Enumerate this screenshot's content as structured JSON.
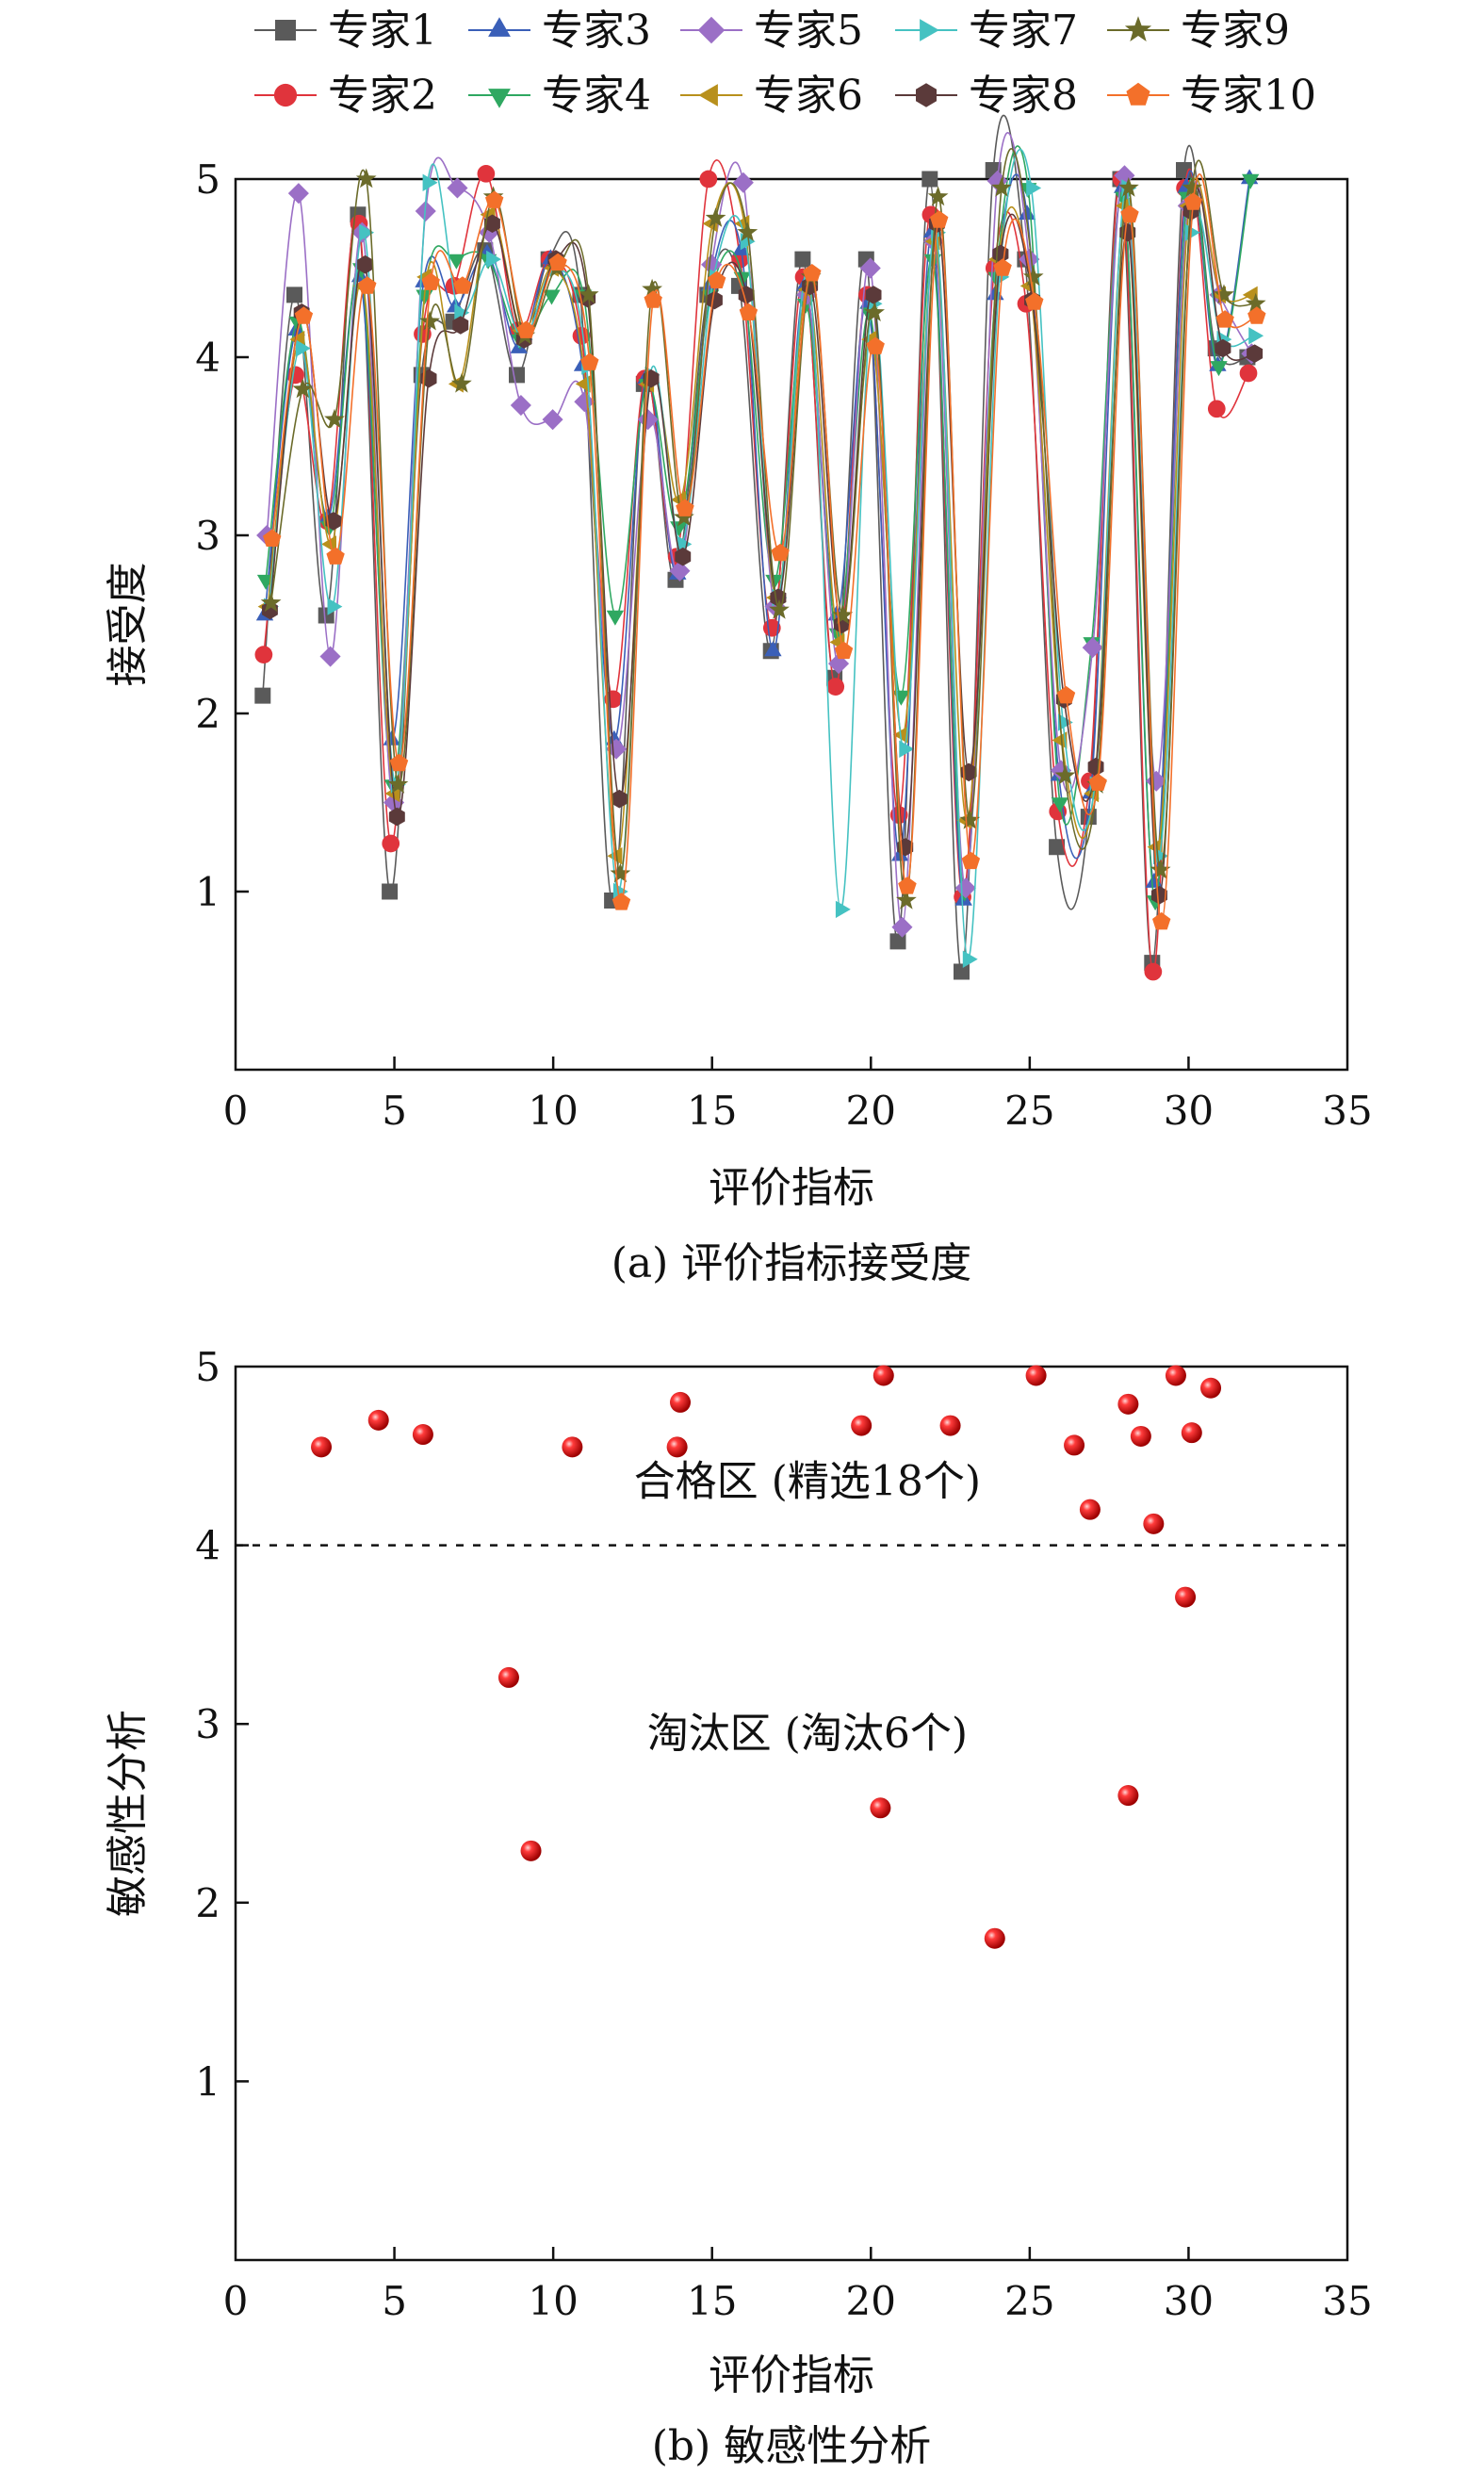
{
  "legend_entries": [
    {
      "name": "专家1",
      "color": "#5a5a5a",
      "marker": "square"
    },
    {
      "name": "专家3",
      "color": "#3a5fb8",
      "marker": "triangle-up"
    },
    {
      "name": "专家5",
      "color": "#9b6fc6",
      "marker": "diamond"
    },
    {
      "name": "专家7",
      "color": "#45c2c2",
      "marker": "triangle-right"
    },
    {
      "name": "专家9",
      "color": "#6b6b2a",
      "marker": "star"
    },
    {
      "name": "专家2",
      "color": "#e0343c",
      "marker": "circle"
    },
    {
      "name": "专家4",
      "color": "#2fa861",
      "marker": "triangle-down"
    },
    {
      "name": "专家6",
      "color": "#b8901c",
      "marker": "triangle-left"
    },
    {
      "name": "专家8",
      "color": "#5b3a3a",
      "marker": "hexagon"
    },
    {
      "name": "专家10",
      "color": "#f3702a",
      "marker": "pentagon"
    }
  ],
  "chart_data": [
    {
      "type": "line",
      "caption": "(a) 评价指标接受度",
      "xlabel": "评价指标",
      "ylabel": "接受度",
      "xlim": [
        0,
        35
      ],
      "ylim": [
        0,
        5
      ],
      "xticks": [
        0,
        5,
        10,
        15,
        20,
        25,
        30,
        35
      ],
      "yticks": [
        1,
        2,
        3,
        4,
        5
      ],
      "grid": false,
      "legend_position": "top",
      "x": [
        1,
        2,
        3,
        4,
        5,
        6,
        7,
        8,
        9,
        10,
        11,
        12,
        13,
        14,
        15,
        16,
        17,
        18,
        19,
        20,
        21,
        22,
        23,
        24,
        25,
        26,
        27,
        28,
        29,
        30,
        31,
        32
      ],
      "series": [
        {
          "name": "专家1",
          "values": [
            2.1,
            4.35,
            2.55,
            4.8,
            1.0,
            3.9,
            4.2,
            4.6,
            3.9,
            4.55,
            4.35,
            0.95,
            3.85,
            2.75,
            4.35,
            4.4,
            2.35,
            4.55,
            2.2,
            4.55,
            0.72,
            5.0,
            0.55,
            5.05,
            4.55,
            1.25,
            1.42,
            5.0,
            0.6,
            5.05,
            4.05,
            4.0
          ]
        },
        {
          "name": "专家2",
          "values": [
            2.33,
            3.9,
            3.08,
            4.75,
            1.27,
            4.13,
            4.4,
            5.03,
            4.15,
            4.55,
            4.12,
            2.08,
            3.88,
            2.88,
            5.0,
            4.55,
            2.48,
            4.45,
            2.15,
            4.35,
            1.43,
            4.8,
            0.97,
            4.5,
            4.3,
            1.45,
            1.62,
            5.0,
            0.55,
            4.95,
            3.71,
            3.91
          ]
        },
        {
          "name": "专家3",
          "values": [
            2.55,
            4.15,
            3.1,
            4.45,
            1.85,
            4.42,
            4.28,
            4.58,
            4.05,
            4.55,
            3.95,
            1.85,
            3.88,
            2.78,
            4.4,
            4.6,
            2.35,
            4.4,
            2.55,
            4.3,
            1.2,
            4.7,
            0.95,
            4.35,
            4.8,
            1.65,
            1.55,
            4.95,
            1.05,
            4.95,
            3.95,
            5.0
          ]
        },
        {
          "name": "专家4",
          "values": [
            2.75,
            4.2,
            3.05,
            4.5,
            1.6,
            4.35,
            4.55,
            4.55,
            4.1,
            4.35,
            4.35,
            2.55,
            3.85,
            3.05,
            4.35,
            4.45,
            2.75,
            4.3,
            2.45,
            4.25,
            2.1,
            4.55,
            1.0,
            4.45,
            4.95,
            1.5,
            2.4,
            4.9,
            0.95,
            4.9,
            3.95,
            5.0
          ]
        },
        {
          "name": "专家5",
          "values": [
            3.0,
            4.92,
            2.32,
            4.7,
            1.5,
            4.82,
            4.95,
            4.7,
            3.73,
            3.65,
            3.75,
            1.8,
            3.65,
            2.8,
            4.52,
            4.98,
            2.6,
            4.35,
            2.28,
            4.5,
            0.8,
            4.65,
            1.02,
            4.99,
            4.55,
            1.68,
            2.37,
            5.02,
            1.62,
            4.85,
            4.35,
            4.02
          ]
        },
        {
          "name": "专家6",
          "values": [
            2.6,
            4.1,
            2.95,
            4.4,
            1.55,
            4.45,
            3.85,
            4.8,
            4.15,
            4.5,
            3.85,
            1.2,
            3.85,
            3.2,
            4.75,
            4.75,
            2.65,
            4.38,
            2.4,
            4.1,
            1.88,
            4.65,
            1.4,
            4.55,
            4.4,
            1.85,
            1.55,
            4.85,
            1.25,
            4.85,
            4.35,
            4.35
          ]
        },
        {
          "name": "专家7",
          "values": [
            2.6,
            4.05,
            2.6,
            4.7,
            1.6,
            4.98,
            4.25,
            4.55,
            4.1,
            4.5,
            3.95,
            1.0,
            3.9,
            2.95,
            4.45,
            4.65,
            2.65,
            4.45,
            0.9,
            4.3,
            1.8,
            4.7,
            0.62,
            4.45,
            4.95,
            1.95,
            1.6,
            4.95,
            1.2,
            4.7,
            4.1,
            4.12
          ]
        },
        {
          "name": "专家8",
          "values": [
            2.58,
            4.25,
            3.08,
            4.52,
            1.42,
            3.88,
            4.18,
            4.75,
            4.1,
            4.55,
            4.33,
            1.52,
            3.88,
            2.88,
            4.32,
            4.35,
            2.65,
            4.4,
            2.5,
            4.35,
            1.25,
            4.75,
            1.67,
            4.58,
            4.32,
            2.08,
            1.7,
            4.7,
            0.98,
            4.82,
            4.05,
            4.02
          ]
        },
        {
          "name": "专家9",
          "values": [
            2.62,
            3.82,
            3.65,
            5.0,
            1.6,
            4.2,
            3.85,
            4.9,
            4.12,
            4.5,
            4.35,
            1.1,
            4.38,
            3.1,
            4.78,
            4.7,
            2.58,
            4.45,
            2.55,
            4.25,
            0.95,
            4.9,
            1.4,
            4.95,
            4.45,
            1.65,
            1.6,
            4.95,
            1.12,
            4.95,
            4.35,
            4.3
          ]
        },
        {
          "name": "专家10",
          "values": [
            2.98,
            4.23,
            2.88,
            4.4,
            1.72,
            4.42,
            4.4,
            4.88,
            4.15,
            4.53,
            3.97,
            0.94,
            4.32,
            3.15,
            4.43,
            4.25,
            2.9,
            4.47,
            2.35,
            4.06,
            1.03,
            4.77,
            1.17,
            4.5,
            4.31,
            2.1,
            1.61,
            4.8,
            0.83,
            4.87,
            4.21,
            4.23
          ]
        }
      ]
    },
    {
      "type": "scatter",
      "caption": "(b) 敏感性分析",
      "xlabel": "评价指标",
      "ylabel": "敏感性分析",
      "xlim": [
        0,
        35
      ],
      "ylim": [
        0,
        5
      ],
      "xticks": [
        0,
        5,
        10,
        15,
        20,
        25,
        30,
        35
      ],
      "yticks": [
        1,
        2,
        3,
        4,
        5
      ],
      "threshold": 4,
      "marker_color": "#e01b24",
      "annotations": [
        {
          "text": "合格区 (精选18个)",
          "x": 18,
          "y": 4.28
        },
        {
          "text": "淘汰区 (淘汰6个)",
          "x": 18,
          "y": 2.87
        }
      ],
      "points": [
        {
          "x": 2.7,
          "y": 4.55
        },
        {
          "x": 4.5,
          "y": 4.7
        },
        {
          "x": 5.9,
          "y": 4.62
        },
        {
          "x": 8.6,
          "y": 3.26
        },
        {
          "x": 9.3,
          "y": 2.29
        },
        {
          "x": 10.6,
          "y": 4.55
        },
        {
          "x": 13.9,
          "y": 4.55
        },
        {
          "x": 14.0,
          "y": 4.8
        },
        {
          "x": 19.7,
          "y": 4.67
        },
        {
          "x": 20.3,
          "y": 2.53
        },
        {
          "x": 20.4,
          "y": 4.95
        },
        {
          "x": 22.5,
          "y": 4.67
        },
        {
          "x": 23.9,
          "y": 1.8
        },
        {
          "x": 25.2,
          "y": 4.95
        },
        {
          "x": 26.4,
          "y": 4.56
        },
        {
          "x": 26.9,
          "y": 4.2
        },
        {
          "x": 28.1,
          "y": 4.79
        },
        {
          "x": 28.1,
          "y": 2.6
        },
        {
          "x": 28.5,
          "y": 4.61
        },
        {
          "x": 28.9,
          "y": 4.12
        },
        {
          "x": 29.6,
          "y": 4.95
        },
        {
          "x": 29.9,
          "y": 3.71
        },
        {
          "x": 30.1,
          "y": 4.63
        },
        {
          "x": 30.7,
          "y": 4.88
        }
      ]
    }
  ]
}
